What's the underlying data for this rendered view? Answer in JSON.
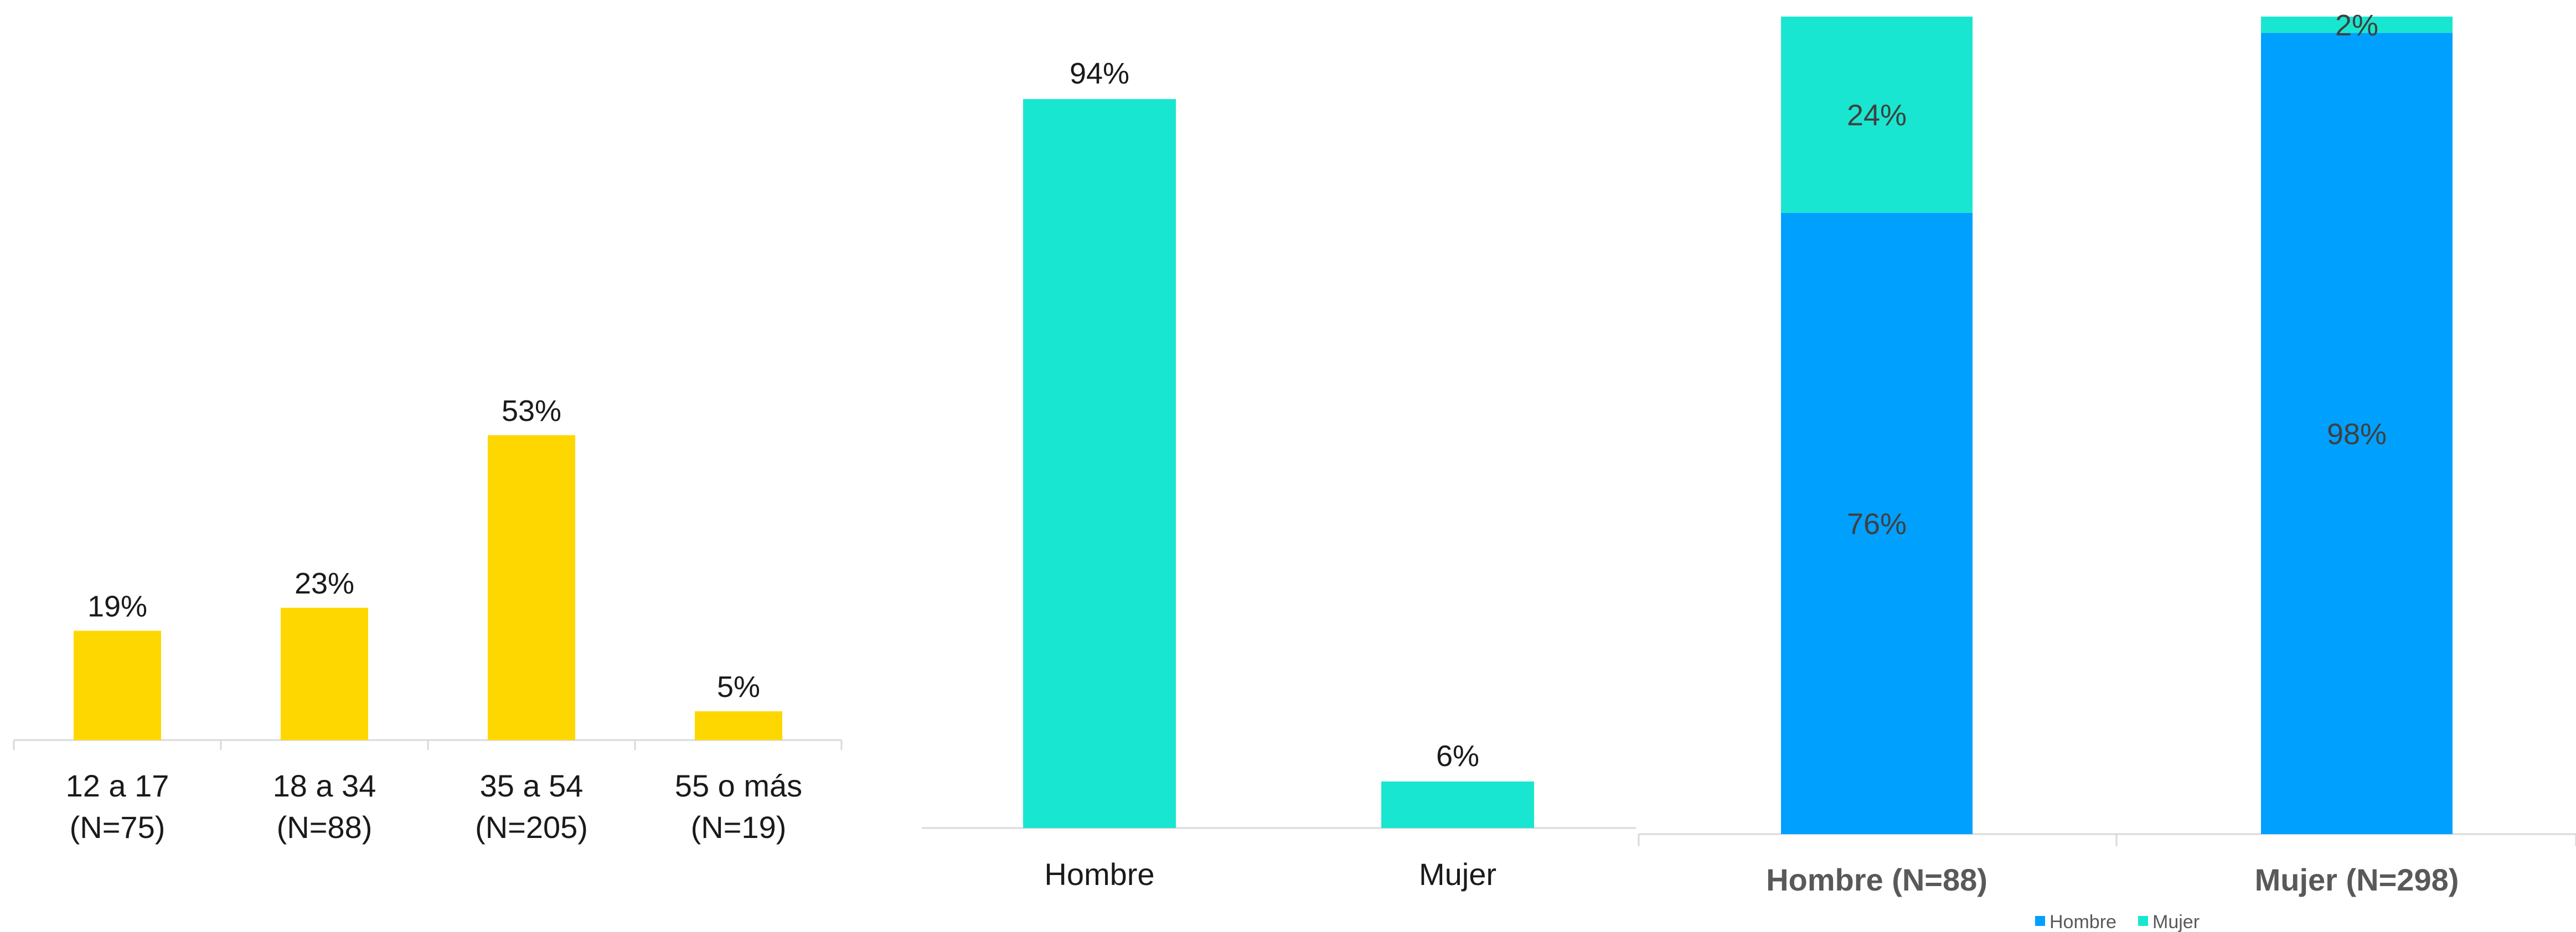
{
  "chart_data": [
    {
      "type": "bar",
      "categories": [
        "12 a 17",
        "18 a 34",
        "35 a 54",
        "55 o más"
      ],
      "sublabels": [
        "(N=75)",
        "(N=88)",
        "(N=205)",
        "(N=19)"
      ],
      "values": [
        19,
        23,
        53,
        5
      ],
      "data_labels": [
        "19%",
        "23%",
        "53%",
        "5%"
      ],
      "ylim": [
        0,
        100
      ],
      "color": "#FFD700",
      "grid": false
    },
    {
      "type": "bar",
      "categories": [
        "Hombre",
        "Mujer"
      ],
      "values": [
        94,
        6
      ],
      "data_labels": [
        "94%",
        "6%"
      ],
      "ylim": [
        0,
        100
      ],
      "color": "#19E6D0",
      "grid": false
    },
    {
      "type": "bar",
      "stacked": true,
      "categories": [
        "Hombre  (N=88)",
        "Mujer  (N=298)"
      ],
      "series": [
        {
          "name": "Hombre",
          "values": [
            76,
            98
          ],
          "data_labels": [
            "76%",
            "98%"
          ],
          "color": "#00A0FF"
        },
        {
          "name": "Mujer",
          "values": [
            24,
            2
          ],
          "data_labels": [
            "24%",
            "2%"
          ],
          "color": "#19E6D0"
        }
      ],
      "ylim": [
        0,
        100
      ],
      "legend": "bottom",
      "grid": false
    }
  ]
}
